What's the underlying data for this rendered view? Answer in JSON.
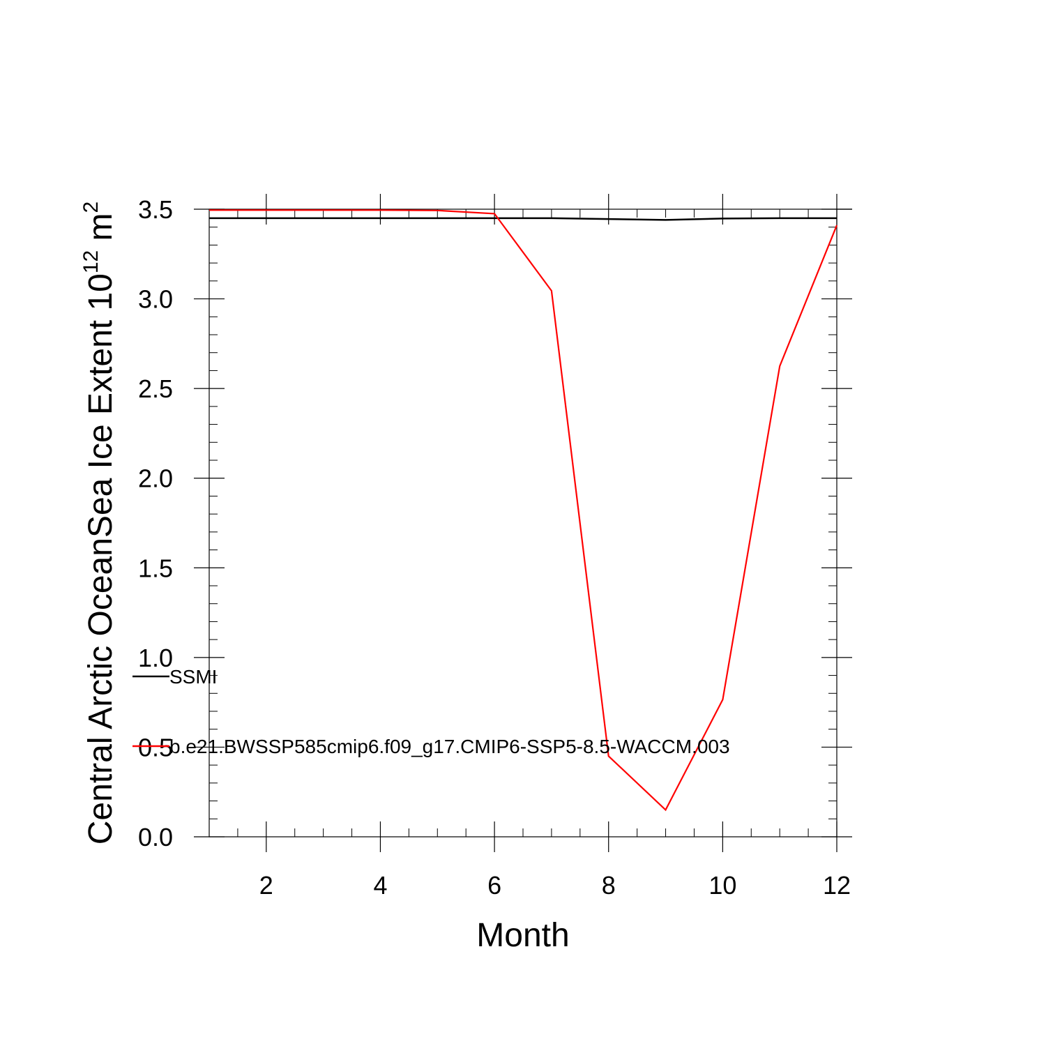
{
  "chart_data": {
    "type": "line",
    "title": "",
    "xlabel": "Month",
    "ylabel": "Central Arctic OceanSea Ice Extent 10",
    "ylabel_sup1": "12",
    "ylabel_unit": " m",
    "ylabel_sup2": "2",
    "xlim": [
      1,
      12
    ],
    "ylim": [
      0,
      3.5
    ],
    "x_ticks": [
      2,
      4,
      6,
      8,
      10,
      12
    ],
    "x_tick_labels": [
      "2",
      "4",
      "6",
      "8",
      "10",
      "12"
    ],
    "y_ticks": [
      0,
      0.5,
      1,
      1.5,
      2,
      2.5,
      3,
      3.5
    ],
    "y_tick_labels": [
      "0.0",
      "0.5",
      "1.0",
      "1.5",
      "2.0",
      "2.5",
      "3.0",
      "3.5"
    ],
    "grid": false,
    "legend_position": "left",
    "x": [
      1,
      2,
      3,
      4,
      5,
      6,
      7,
      8,
      9,
      10,
      11,
      12
    ],
    "series": [
      {
        "name": "SSMI",
        "color": "#000000",
        "values": [
          3.45,
          3.45,
          3.45,
          3.45,
          3.45,
          3.45,
          3.45,
          3.445,
          3.44,
          3.448,
          3.45,
          3.45
        ]
      },
      {
        "name": "b.e21.BWSSP585cmip6.f09_g17.CMIP6-SSP5-8.5-WACCM.003",
        "color": "#ff0000",
        "values": [
          3.495,
          3.495,
          3.495,
          3.495,
          3.493,
          3.475,
          3.045,
          0.45,
          0.15,
          0.765,
          2.625,
          3.41
        ]
      }
    ]
  }
}
